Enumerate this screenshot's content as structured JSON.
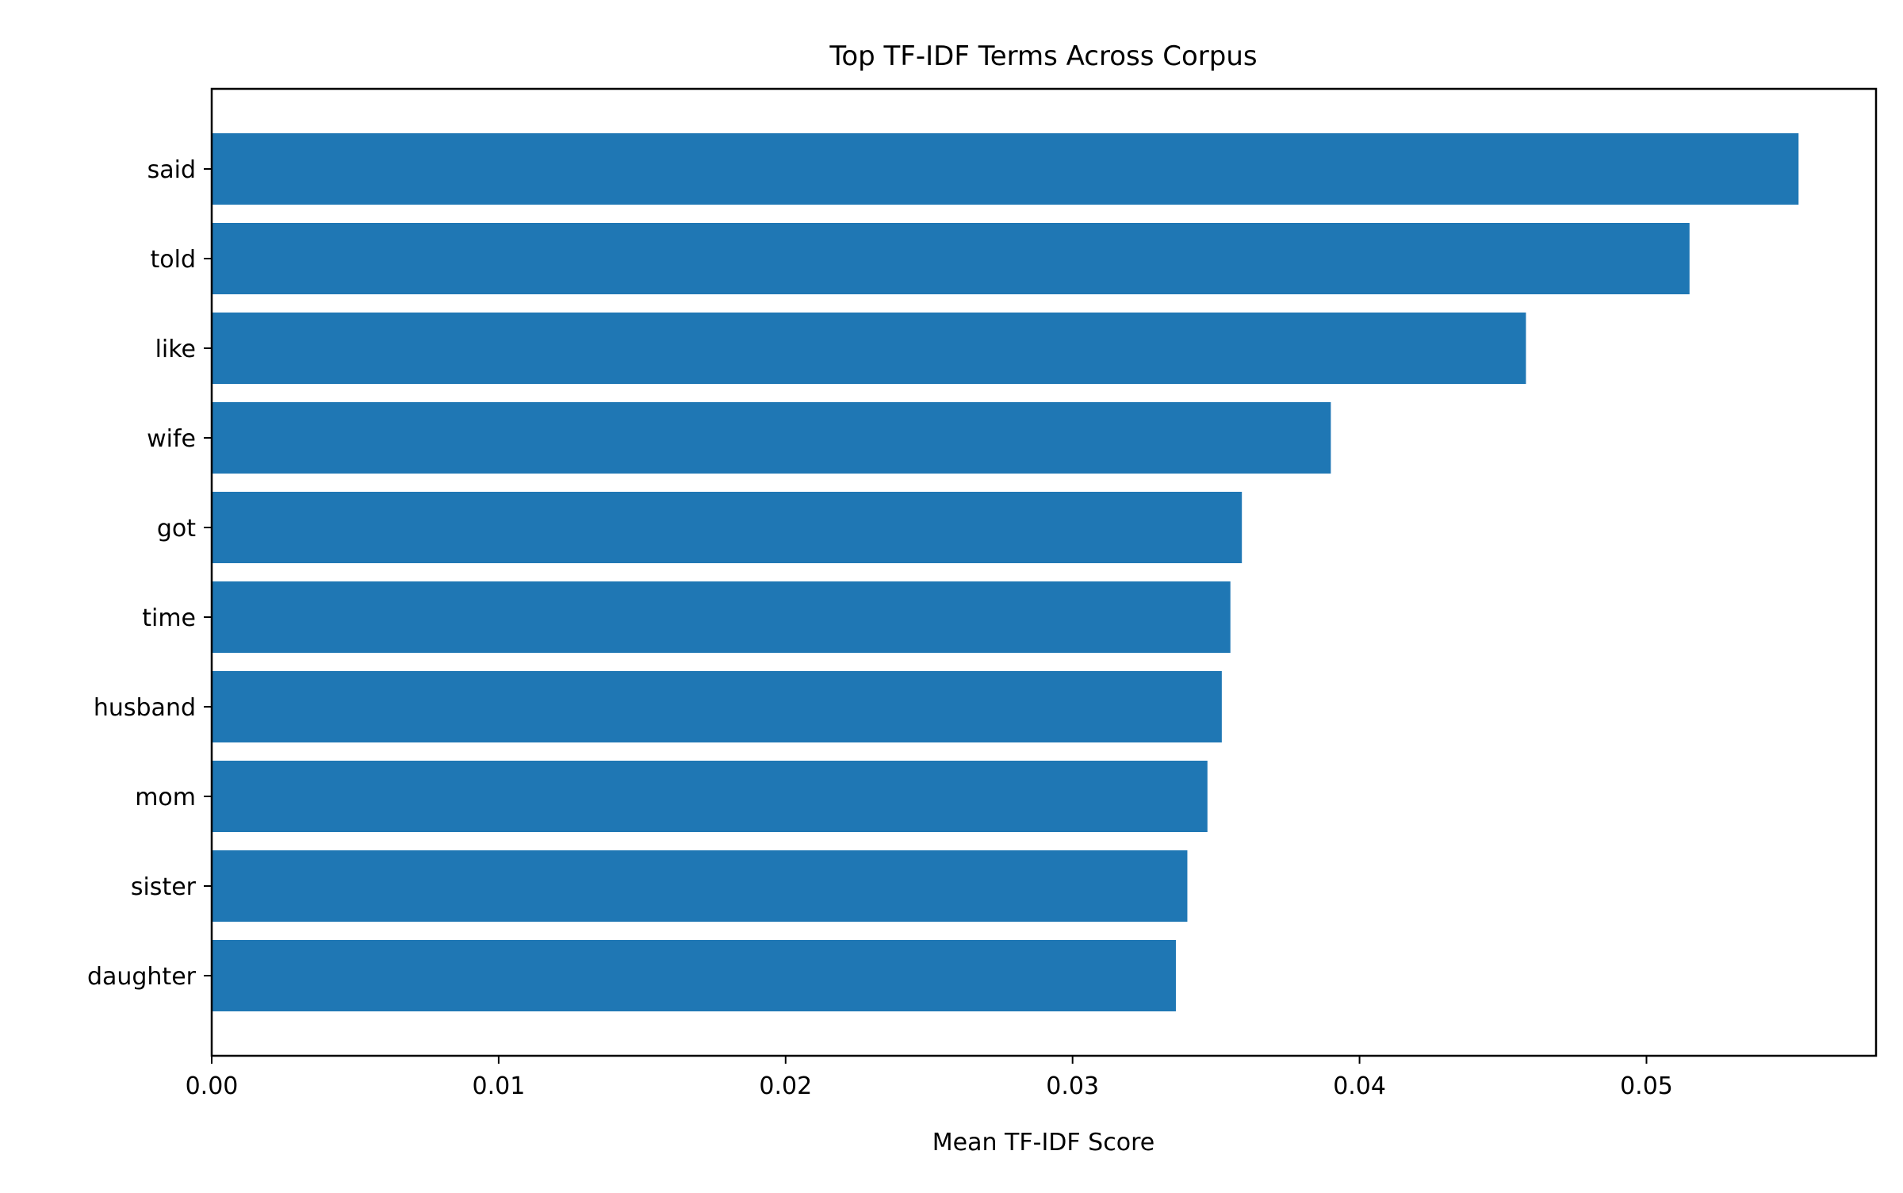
{
  "chart_data": {
    "type": "bar",
    "orientation": "horizontal",
    "title": "Top TF-IDF Terms Across Corpus",
    "xlabel": "Mean TF-IDF Score",
    "ylabel": "",
    "categories": [
      "said",
      "told",
      "like",
      "wife",
      "got",
      "time",
      "husband",
      "mom",
      "sister",
      "daughter"
    ],
    "values": [
      0.0553,
      0.0515,
      0.0458,
      0.039,
      0.0359,
      0.0355,
      0.0352,
      0.0347,
      0.034,
      0.0336
    ],
    "xlim": [
      0,
      0.058
    ],
    "xticks": [
      0.0,
      0.01,
      0.02,
      0.03,
      0.04,
      0.05
    ],
    "xtick_labels": [
      "0.00",
      "0.01",
      "0.02",
      "0.03",
      "0.04",
      "0.05"
    ],
    "bar_color": "#1f77b4",
    "grid": false,
    "legend": "none"
  }
}
